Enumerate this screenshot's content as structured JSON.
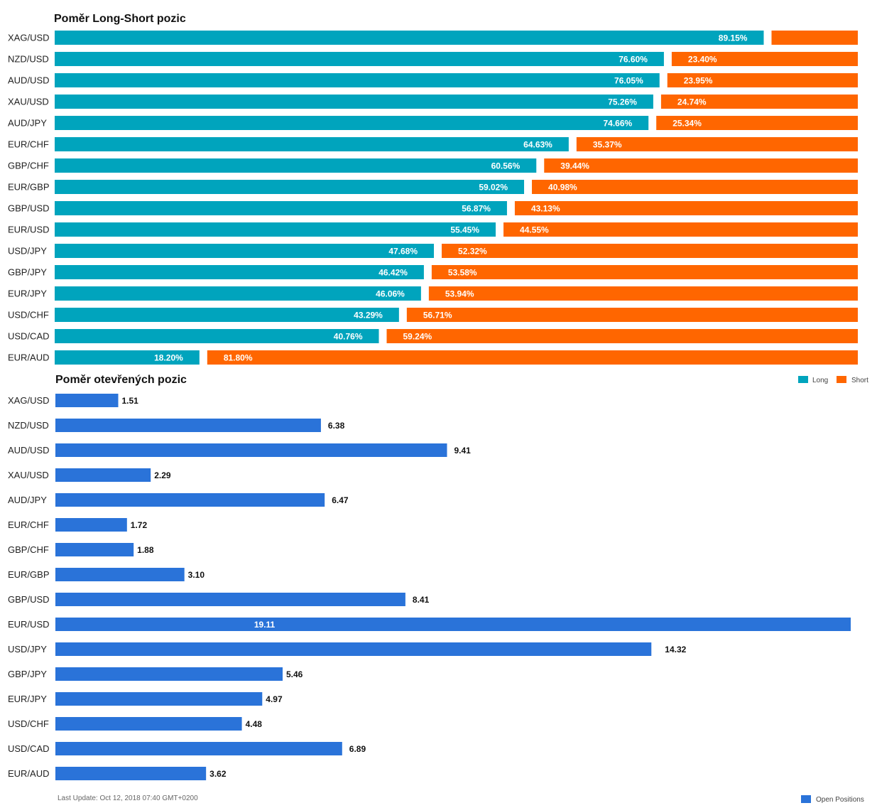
{
  "colors": {
    "long": "#00a4bd",
    "short": "#ff6600",
    "open": "#2a73d9"
  },
  "footer": {
    "last_update": "Last Update: Oct 12, 2018 07:40 GMT+0200"
  },
  "chart_data": [
    {
      "type": "bar",
      "orientation": "horizontal",
      "stacked": true,
      "title": "Poměr Long-Short pozic",
      "categories": [
        "XAG/USD",
        "NZD/USD",
        "AUD/USD",
        "XAU/USD",
        "AUD/JPY",
        "EUR/CHF",
        "GBP/CHF",
        "EUR/GBP",
        "GBP/USD",
        "EUR/USD",
        "USD/JPY",
        "GBP/JPY",
        "EUR/JPY",
        "USD/CHF",
        "USD/CAD",
        "EUR/AUD"
      ],
      "series": [
        {
          "name": "Long",
          "values": [
            89.15,
            76.6,
            76.05,
            75.26,
            74.66,
            64.63,
            60.56,
            59.02,
            56.87,
            55.45,
            47.68,
            46.42,
            46.06,
            43.29,
            40.76,
            18.2
          ]
        },
        {
          "name": "Short",
          "values": [
            10.85,
            23.4,
            23.95,
            24.74,
            25.34,
            35.37,
            39.44,
            40.98,
            43.13,
            44.55,
            52.32,
            53.58,
            53.94,
            56.71,
            59.24,
            81.8
          ]
        }
      ],
      "value_labels": {
        "Long": [
          "89.15%",
          "76.60%",
          "76.05%",
          "75.26%",
          "74.66%",
          "64.63%",
          "60.56%",
          "59.02%",
          "56.87%",
          "55.45%",
          "47.68%",
          "46.42%",
          "46.06%",
          "43.29%",
          "40.76%",
          "18.20%"
        ],
        "Short": [
          "",
          "23.40%",
          "23.95%",
          "24.74%",
          "25.34%",
          "35.37%",
          "39.44%",
          "40.98%",
          "43.13%",
          "44.55%",
          "52.32%",
          "53.58%",
          "53.94%",
          "56.71%",
          "59.24%",
          "81.80%"
        ]
      },
      "xlim": [
        0,
        100
      ],
      "legend": [
        "Long",
        "Short"
      ],
      "legend_position": "right"
    },
    {
      "type": "bar",
      "orientation": "horizontal",
      "title": "Poměr otevřených pozic",
      "categories": [
        "XAG/USD",
        "NZD/USD",
        "AUD/USD",
        "XAU/USD",
        "AUD/JPY",
        "EUR/CHF",
        "GBP/CHF",
        "EUR/GBP",
        "GBP/USD",
        "EUR/USD",
        "USD/JPY",
        "GBP/JPY",
        "EUR/JPY",
        "USD/CHF",
        "USD/CAD",
        "EUR/AUD"
      ],
      "series": [
        {
          "name": "Open Positions",
          "values": [
            1.51,
            6.38,
            9.41,
            2.29,
            6.47,
            1.72,
            1.88,
            3.1,
            8.41,
            19.11,
            14.32,
            5.46,
            4.97,
            4.48,
            6.89,
            3.62
          ]
        }
      ],
      "value_labels": [
        "1.51",
        "6.38",
        "9.41",
        "2.29",
        "6.47",
        "1.72",
        "1.88",
        "3.10",
        "8.41",
        "19.11",
        "14.32",
        "5.46",
        "4.97",
        "4.48",
        "6.89",
        "3.62"
      ],
      "xlim": [
        0,
        19.11
      ],
      "legend": [
        "Open Positions"
      ],
      "legend_position": "bottom-right"
    }
  ]
}
